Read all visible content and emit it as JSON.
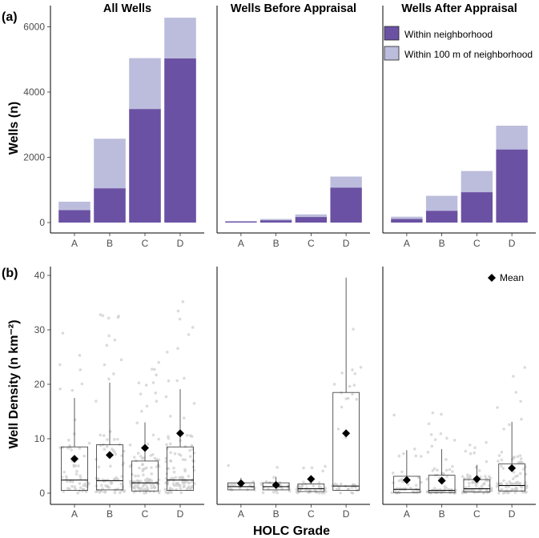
{
  "panel_labels": {
    "a": "(a)",
    "b": "(b)"
  },
  "legend": {
    "within": "Within neighborhood",
    "within100": "Within 100 m of neighborhood",
    "mean": "Mean"
  },
  "colors": {
    "within": "#6a51a3",
    "within100": "#bcbddc",
    "points": "#cccccc",
    "box_edge": "#333333"
  },
  "axis": {
    "top_ylabel": "Wells (n)",
    "bottom_ylabel": "Well Density (n km⁻²)",
    "xlabel": "HOLC Grade"
  },
  "chart_data": [
    {
      "type": "bar",
      "stacked": true,
      "ylabel": "Wells (n)",
      "ylim": [
        0,
        6500
      ],
      "yticks": [
        0,
        2000,
        4000,
        6000
      ],
      "categories": [
        "A",
        "B",
        "C",
        "D"
      ],
      "facets": [
        {
          "title": "All Wells",
          "series": [
            {
              "name": "Within neighborhood",
              "values": [
                380,
                1050,
                3480,
                5030
              ]
            },
            {
              "name": "Within 100 m of neighborhood",
              "values": [
                260,
                1520,
                1560,
                1250
              ]
            }
          ]
        },
        {
          "title": "Wells Before Appraisal",
          "series": [
            {
              "name": "Within neighborhood",
              "values": [
                30,
                70,
                170,
                1070
              ]
            },
            {
              "name": "Within 100 m of neighborhood",
              "values": [
                20,
                40,
                80,
                340
              ]
            }
          ]
        },
        {
          "title": "Wells After Appraisal",
          "series": [
            {
              "name": "Within neighborhood",
              "values": [
                110,
                360,
                930,
                2240
              ]
            },
            {
              "name": "Within 100 m of neighborhood",
              "values": [
                70,
                460,
                650,
                730
              ]
            }
          ]
        }
      ]
    },
    {
      "type": "box",
      "ylabel": "Well Density (n km⁻²)",
      "xlabel": "HOLC Grade",
      "ylim": [
        -1,
        40
      ],
      "yticks": [
        0,
        10,
        20,
        30,
        40
      ],
      "categories": [
        "A",
        "B",
        "C",
        "D"
      ],
      "facets": [
        {
          "title": "All Wells",
          "boxes": [
            {
              "q1": 0.5,
              "median": 2.4,
              "q3": 8.5,
              "whisker_low": 0,
              "whisker_high": 17.5,
              "mean": 6.3
            },
            {
              "q1": 0.6,
              "median": 2.3,
              "q3": 8.9,
              "whisker_low": 0,
              "whisker_high": 20.3,
              "mean": 7.0
            },
            {
              "q1": 0.4,
              "median": 1.9,
              "q3": 5.9,
              "whisker_low": 0,
              "whisker_high": 13.0,
              "mean": 8.3
            },
            {
              "q1": 0.5,
              "median": 2.4,
              "q3": 8.5,
              "whisker_low": 0,
              "whisker_high": 19.1,
              "mean": 11.0
            }
          ]
        },
        {
          "title": "Wells Before Appraisal",
          "boxes": [
            {
              "q1": 0.6,
              "median": 1.2,
              "q3": 1.9,
              "whisker_low": 0,
              "whisker_high": 2.8,
              "mean": 1.8
            },
            {
              "q1": 0.6,
              "median": 1.2,
              "q3": 1.9,
              "whisker_low": 0,
              "whisker_high": 3.0,
              "mean": 1.5
            },
            {
              "q1": 0.3,
              "median": 0.8,
              "q3": 1.7,
              "whisker_low": 0,
              "whisker_high": 3.2,
              "mean": 2.6
            },
            {
              "q1": 0.5,
              "median": 1.3,
              "q3": 18.5,
              "whisker_low": 0,
              "whisker_high": 39.6,
              "mean": 11.0
            }
          ]
        },
        {
          "title": "Wells After Appraisal",
          "boxes": [
            {
              "q1": 0.1,
              "median": 0.7,
              "q3": 3.1,
              "whisker_low": 0,
              "whisker_high": 7.9,
              "mean": 2.4
            },
            {
              "q1": 0.1,
              "median": 0.5,
              "q3": 3.3,
              "whisker_low": 0,
              "whisker_high": 8.1,
              "mean": 2.3
            },
            {
              "q1": 0.2,
              "median": 0.8,
              "q3": 2.5,
              "whisker_low": 0,
              "whisker_high": 5.2,
              "mean": 2.6
            },
            {
              "q1": 0.4,
              "median": 1.4,
              "q3": 5.4,
              "whisker_low": 0,
              "whisker_high": 13.1,
              "mean": 4.6
            }
          ]
        }
      ]
    }
  ]
}
